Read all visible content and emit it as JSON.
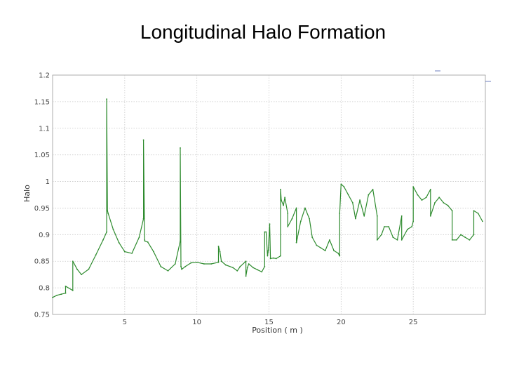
{
  "slide": {
    "title": "Longitudinal Halo Formation"
  },
  "chart_data": {
    "type": "line",
    "title": "Longitudinal Halo Formation",
    "xlabel": "Position ( m )",
    "ylabel": "Halo",
    "xlim": [
      0,
      30
    ],
    "ylim": [
      0.75,
      1.2
    ],
    "x_ticks": [
      5,
      10,
      15,
      20,
      25
    ],
    "y_ticks": [
      0.75,
      0.8,
      0.85,
      0.9,
      0.95,
      1,
      1.05,
      1.1,
      1.15,
      1.2
    ],
    "x_tick_labels": [
      "5",
      "10",
      "15",
      "20",
      "25"
    ],
    "y_tick_labels": [
      "0.75",
      "0.8",
      "0.85",
      "0.9",
      "0.95",
      "1",
      "1.05",
      "1.1",
      "1.15",
      "1.2"
    ],
    "grid": true,
    "legend_position": "top-right",
    "series": [
      {
        "color": "#2e8b2e",
        "x": [
          0,
          0.3,
          0.6,
          0.9,
          0.9,
          1.4,
          1.4,
          1.7,
          2.0,
          2.5,
          3.0,
          3.5,
          3.75,
          3.75,
          3.8,
          3.85,
          4.2,
          4.6,
          5.0,
          5.5,
          6.0,
          6.3,
          6.3,
          6.38,
          6.4,
          6.6,
          7.0,
          7.5,
          8.0,
          8.5,
          8.85,
          8.85,
          8.9,
          8.95,
          9.2,
          9.6,
          10.0,
          10.5,
          11.0,
          11.5,
          11.5,
          11.6,
          11.7,
          12.0,
          12.5,
          12.8,
          13.0,
          13.4,
          13.4,
          13.5,
          13.6,
          13.9,
          14.2,
          14.5,
          14.7,
          14.7,
          14.8,
          14.9,
          14.95,
          15.05,
          15.1,
          15.3,
          15.5,
          15.8,
          15.8,
          15.85,
          16.0,
          16.1,
          16.3,
          16.3,
          16.6,
          16.9,
          16.9,
          17.2,
          17.5,
          17.8,
          18.0,
          18.3,
          18.6,
          18.9,
          19.2,
          19.5,
          19.8,
          19.9,
          19.9,
          20.0,
          20.2,
          20.5,
          20.8,
          21.0,
          21.3,
          21.6,
          21.9,
          22.2,
          22.5,
          22.5,
          22.8,
          23.0,
          23.3,
          23.6,
          23.9,
          24.2,
          24.2,
          24.6,
          24.9,
          25.0,
          25.0,
          25.3,
          25.6,
          25.9,
          26.2,
          26.2,
          26.5,
          26.8,
          27.1,
          27.4,
          27.7,
          27.7,
          28.0,
          28.3,
          28.6,
          28.9,
          29.2,
          29.2,
          29.5,
          29.8
        ],
        "y": [
          0.782,
          0.786,
          0.788,
          0.79,
          0.803,
          0.795,
          0.85,
          0.835,
          0.825,
          0.835,
          0.862,
          0.89,
          0.905,
          1.155,
          0.945,
          0.94,
          0.91,
          0.885,
          0.868,
          0.865,
          0.895,
          0.93,
          1.078,
          0.89,
          0.888,
          0.886,
          0.868,
          0.84,
          0.832,
          0.845,
          0.888,
          1.063,
          0.84,
          0.835,
          0.84,
          0.847,
          0.848,
          0.845,
          0.845,
          0.848,
          0.878,
          0.868,
          0.85,
          0.843,
          0.838,
          0.832,
          0.84,
          0.85,
          0.822,
          0.838,
          0.845,
          0.838,
          0.834,
          0.83,
          0.84,
          0.905,
          0.905,
          0.86,
          0.87,
          0.92,
          0.855,
          0.856,
          0.855,
          0.86,
          0.985,
          0.965,
          0.955,
          0.97,
          0.94,
          0.915,
          0.93,
          0.95,
          0.885,
          0.925,
          0.95,
          0.93,
          0.895,
          0.88,
          0.875,
          0.87,
          0.89,
          0.87,
          0.865,
          0.86,
          0.94,
          0.995,
          0.99,
          0.975,
          0.96,
          0.93,
          0.965,
          0.935,
          0.975,
          0.985,
          0.935,
          0.89,
          0.9,
          0.915,
          0.915,
          0.895,
          0.89,
          0.935,
          0.89,
          0.91,
          0.915,
          0.925,
          0.99,
          0.975,
          0.965,
          0.97,
          0.985,
          0.935,
          0.96,
          0.97,
          0.96,
          0.955,
          0.945,
          0.89,
          0.89,
          0.9,
          0.895,
          0.89,
          0.9,
          0.945,
          0.94,
          0.925
        ]
      }
    ]
  }
}
